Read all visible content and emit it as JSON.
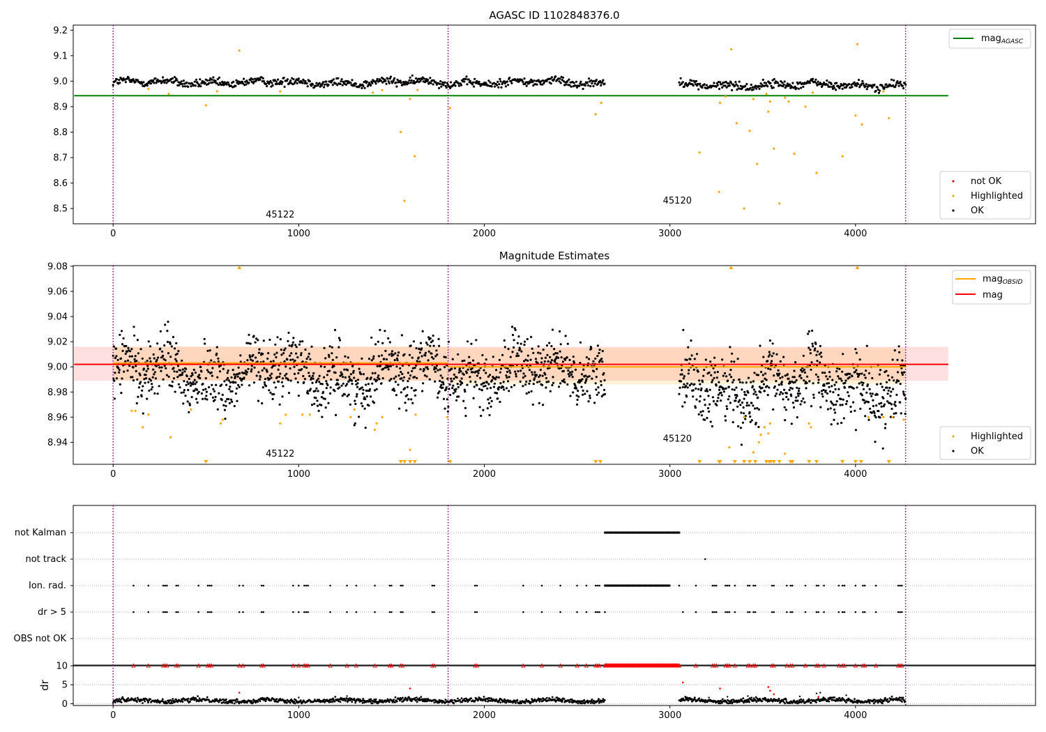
{
  "figure": {
    "background": "#ffffff"
  },
  "colors": {
    "ok": "#000000",
    "highlighted": "#ffa500",
    "not_ok": "#ff0000",
    "agasc_line": "#008000",
    "obsid_line": "#ffa500",
    "mag_line": "#ff0000",
    "obsid_boundary": "#800080"
  },
  "obsid_boundaries": [
    0,
    1805,
    4270
  ],
  "chart_data": [
    {
      "id": "top",
      "type": "scatter",
      "title": "AGASC ID 1102848376.0",
      "xlim": [
        -215,
        4970
      ],
      "ylim": [
        8.44,
        9.22
      ],
      "xticks": [
        0,
        1000,
        2000,
        3000,
        4000
      ],
      "xtick_labels": [
        "0",
        "1000",
        "2000",
        "3000",
        "4000"
      ],
      "yticks": [
        8.5,
        8.6,
        8.7,
        8.8,
        8.9,
        9.0,
        9.1,
        9.2
      ],
      "ytick_labels": [
        "8.5",
        "8.6",
        "8.7",
        "8.8",
        "8.9",
        "9.0",
        "9.1",
        "9.2"
      ],
      "mag_agasc": 8.943,
      "hline_xrange": [
        0,
        4500
      ],
      "segments": [
        {
          "x0": 0,
          "x1": 2650,
          "mean": 8.995,
          "noise": 0.008,
          "step": 4
        },
        {
          "x0": 3050,
          "x1": 4270,
          "mean": 8.985,
          "noise": 0.008,
          "step": 4
        }
      ],
      "highlighted_points": [
        [
          680,
          9.12
        ],
        [
          500,
          8.905
        ],
        [
          1550,
          8.8
        ],
        [
          1570,
          8.53
        ],
        [
          1600,
          8.93
        ],
        [
          1625,
          8.705
        ],
        [
          1815,
          8.895
        ],
        [
          2600,
          8.87
        ],
        [
          2630,
          8.915
        ],
        [
          3160,
          8.72
        ],
        [
          3265,
          8.565
        ],
        [
          3270,
          8.915
        ],
        [
          3300,
          8.94
        ],
        [
          3330,
          9.125
        ],
        [
          3360,
          8.835
        ],
        [
          3400,
          8.5
        ],
        [
          3430,
          8.805
        ],
        [
          3450,
          8.93
        ],
        [
          3470,
          8.675
        ],
        [
          3520,
          8.95
        ],
        [
          3530,
          8.88
        ],
        [
          3540,
          8.92
        ],
        [
          3560,
          8.735
        ],
        [
          3590,
          8.52
        ],
        [
          3620,
          8.935
        ],
        [
          3640,
          8.92
        ],
        [
          3670,
          8.715
        ],
        [
          3730,
          8.9
        ],
        [
          3790,
          8.64
        ],
        [
          3930,
          8.705
        ],
        [
          4000,
          8.865
        ],
        [
          4010,
          9.145
        ],
        [
          4035,
          8.83
        ],
        [
          4180,
          8.855
        ],
        [
          190,
          8.97
        ],
        [
          300,
          8.95
        ],
        [
          560,
          8.96
        ],
        [
          900,
          8.96
        ],
        [
          1400,
          8.955
        ],
        [
          1450,
          8.965
        ],
        [
          1640,
          8.965
        ],
        [
          3770,
          8.955
        ],
        [
          4150,
          8.96
        ]
      ],
      "obsid_labels": [
        {
          "text": "45122",
          "x": 900,
          "y": 8.465
        },
        {
          "text": "45120",
          "x": 3040,
          "y": 8.52
        }
      ],
      "legend_top": [
        {
          "label": "mag",
          "sub": "AGASC",
          "color": "#008000"
        }
      ],
      "legend_bottom": [
        {
          "label": "not OK",
          "color": "#ff0000"
        },
        {
          "label": "Highlighted",
          "color": "#ffa500"
        },
        {
          "label": "OK",
          "color": "#000000"
        }
      ]
    },
    {
      "id": "middle",
      "type": "scatter",
      "title": "Magnitude Estimates",
      "xlim": [
        -215,
        4970
      ],
      "ylim": [
        8.9225,
        9.0805
      ],
      "xticks": [
        0,
        1000,
        2000,
        3000,
        4000
      ],
      "xtick_labels": [
        "0",
        "1000",
        "2000",
        "3000",
        "4000"
      ],
      "yticks": [
        8.94,
        8.96,
        8.98,
        9.0,
        9.02,
        9.04,
        9.06,
        9.08
      ],
      "ytick_labels": [
        "8.94",
        "8.96",
        "8.98",
        "9.00",
        "9.02",
        "9.04",
        "9.06",
        "9.08"
      ],
      "mag": 9.002,
      "mag_band": [
        8.989,
        9.016
      ],
      "mag_xrange": [
        0,
        4500
      ],
      "obsid_segments": [
        {
          "x0": 0,
          "x1": 1805,
          "mag": 9.003,
          "band": [
            8.989,
            9.016
          ]
        },
        {
          "x0": 1805,
          "x1": 4270,
          "mag": 9.0,
          "band": [
            8.986,
            9.015
          ]
        }
      ],
      "segments": [
        {
          "x0": 0,
          "x1": 2650,
          "mean": 8.995,
          "noise": 0.012,
          "step": 2
        },
        {
          "x0": 3050,
          "x1": 4270,
          "mean": 8.985,
          "noise": 0.013,
          "step": 2
        }
      ],
      "highlighted_points": [
        [
          100,
          8.965
        ],
        [
          120,
          8.965
        ],
        [
          160,
          8.952
        ],
        [
          190,
          8.962
        ],
        [
          310,
          8.944
        ],
        [
          420,
          8.966
        ],
        [
          580,
          8.955
        ],
        [
          590,
          8.958
        ],
        [
          900,
          8.955
        ],
        [
          930,
          8.962
        ],
        [
          1020,
          8.962
        ],
        [
          1060,
          8.962
        ],
        [
          1280,
          8.96
        ],
        [
          1300,
          8.966
        ],
        [
          1410,
          8.95
        ],
        [
          1420,
          8.955
        ],
        [
          1450,
          8.96
        ],
        [
          1600,
          8.934
        ],
        [
          1630,
          8.962
        ],
        [
          1800,
          8.96
        ],
        [
          3320,
          8.936
        ],
        [
          3400,
          8.96
        ],
        [
          3450,
          8.932
        ],
        [
          3480,
          8.94
        ],
        [
          3490,
          8.946
        ],
        [
          3510,
          8.952
        ],
        [
          3530,
          8.947
        ],
        [
          3540,
          8.955
        ],
        [
          3620,
          8.931
        ],
        [
          3750,
          8.955
        ],
        [
          3760,
          8.952
        ],
        [
          4070,
          8.96
        ],
        [
          4150,
          8.96
        ],
        [
          4200,
          8.96
        ],
        [
          4260,
          8.958
        ]
      ],
      "markers_up": [
        680,
        3330,
        4010
      ],
      "markers_down": [
        500,
        1550,
        1570,
        1600,
        1625,
        1815,
        2600,
        2625,
        3160,
        3265,
        3270,
        3350,
        3400,
        3430,
        3460,
        3520,
        3535,
        3545,
        3560,
        3590,
        3650,
        3660,
        3750,
        3790,
        3930,
        4000,
        4030,
        4180
      ],
      "obsid_labels": [
        {
          "text": "45122",
          "x": 900,
          "y": 8.9285
        },
        {
          "text": "45120",
          "x": 3040,
          "y": 8.9405
        }
      ],
      "legend_top": [
        {
          "label": "mag",
          "sub": "OBSID",
          "color": "#ffa500"
        },
        {
          "label": "mag",
          "sub": "",
          "color": "#ff0000"
        }
      ],
      "legend_bottom": [
        {
          "label": "Highlighted",
          "color": "#ffa500"
        },
        {
          "label": "OK",
          "color": "#000000"
        }
      ]
    },
    {
      "id": "flags",
      "type": "scatter",
      "xlim": [
        -215,
        4970
      ],
      "categories": [
        "not Kalman",
        "not track",
        "Ion. rad.",
        "dr > 5",
        "OBS not OK"
      ],
      "flag_ranges": {
        "not Kalman": [
          [
            2650,
            3050
          ]
        ],
        "not track": [],
        "Ion. rad.": [
          [
            2650,
            3000
          ]
        ],
        "dr > 5": []
      },
      "flag_points": {
        "not track": [
          3190
        ],
        "Ion. rad.": [
          110,
          190,
          270,
          280,
          290,
          340,
          350,
          460,
          510,
          520,
          530,
          680,
          700,
          800,
          810,
          970,
          1000,
          1030,
          1040,
          1050,
          1170,
          1260,
          1310,
          1410,
          1490,
          1500,
          1550,
          1560,
          1720,
          1730,
          1950,
          1960,
          2210,
          2310,
          2410,
          2500,
          2550,
          2600,
          2610,
          2620,
          3050,
          3140,
          3230,
          3240,
          3250,
          3300,
          3310,
          3320,
          3350,
          3420,
          3430,
          3450,
          3460,
          3550,
          3560,
          3630,
          3650,
          3660,
          3730,
          3790,
          3800,
          3830,
          3910,
          3930,
          3940,
          4000,
          4040,
          4050,
          4110,
          4230,
          4240,
          4250
        ],
        "dr > 5": [
          110,
          190,
          270,
          280,
          290,
          340,
          350,
          460,
          510,
          520,
          530,
          680,
          700,
          800,
          810,
          970,
          1000,
          1030,
          1040,
          1050,
          1170,
          1260,
          1310,
          1410,
          1490,
          1500,
          1550,
          1560,
          1720,
          1730,
          1950,
          1960,
          2210,
          2310,
          2410,
          2500,
          2550,
          2600,
          2610,
          2620,
          2650,
          3070,
          3140,
          3230,
          3240,
          3250,
          3300,
          3310,
          3320,
          3350,
          3420,
          3430,
          3450,
          3460,
          3550,
          3560,
          3630,
          3650,
          3660,
          3730,
          3790,
          3800,
          3830,
          3910,
          3930,
          3940,
          4000,
          4040,
          4050,
          4110,
          4230,
          4240,
          4250
        ]
      }
    },
    {
      "id": "dr",
      "type": "scatter",
      "ylabel": "dr",
      "xlim": [
        -215,
        4970
      ],
      "ylim": [
        -0.5,
        10.2
      ],
      "xticks": [
        0,
        1000,
        2000,
        3000,
        4000
      ],
      "xtick_labels": [
        "0",
        "1000",
        "2000",
        "3000",
        "4000"
      ],
      "yticks": [
        0,
        5,
        10
      ],
      "ytick_labels": [
        "0",
        "5",
        "10"
      ],
      "segments": [
        {
          "x0": 0,
          "x1": 2650,
          "mean": 0.8,
          "noise": 0.5,
          "step": 3
        },
        {
          "x0": 3050,
          "x1": 4270,
          "mean": 0.8,
          "noise": 0.5,
          "step": 3
        }
      ],
      "clipped_range": [
        2650,
        3050
      ],
      "clipped_points": [
        110,
        190,
        270,
        280,
        290,
        340,
        350,
        460,
        510,
        520,
        530,
        680,
        700,
        800,
        810,
        970,
        1000,
        1030,
        1040,
        1050,
        1170,
        1260,
        1310,
        1410,
        1490,
        1500,
        1550,
        1560,
        1720,
        1730,
        1950,
        1960,
        2210,
        2310,
        2410,
        2500,
        2550,
        2600,
        2610,
        2620,
        3140,
        3230,
        3240,
        3250,
        3300,
        3310,
        3320,
        3350,
        3420,
        3430,
        3450,
        3460,
        3550,
        3560,
        3630,
        3650,
        3660,
        3730,
        3790,
        3800,
        3830,
        3910,
        3930,
        3940,
        4000,
        4040,
        4050,
        4110,
        4230,
        4240,
        4250
      ],
      "red_points": [
        [
          680,
          2.9
        ],
        [
          1600,
          4.0
        ],
        [
          3070,
          5.6
        ],
        [
          3270,
          4.0
        ],
        [
          3530,
          4.4
        ],
        [
          3540,
          3.4
        ],
        [
          3560,
          2.5
        ],
        [
          3800,
          1.8
        ]
      ],
      "extra_black": [
        [
          3310,
          1.8
        ],
        [
          3420,
          2.0
        ],
        [
          3440,
          1.6
        ],
        [
          3700,
          1.9
        ],
        [
          3790,
          2.7
        ],
        [
          3810,
          2.9
        ],
        [
          3950,
          2.2
        ],
        [
          1260,
          2.0
        ],
        [
          1000,
          1.6
        ],
        [
          3210,
          1.6
        ]
      ]
    }
  ]
}
